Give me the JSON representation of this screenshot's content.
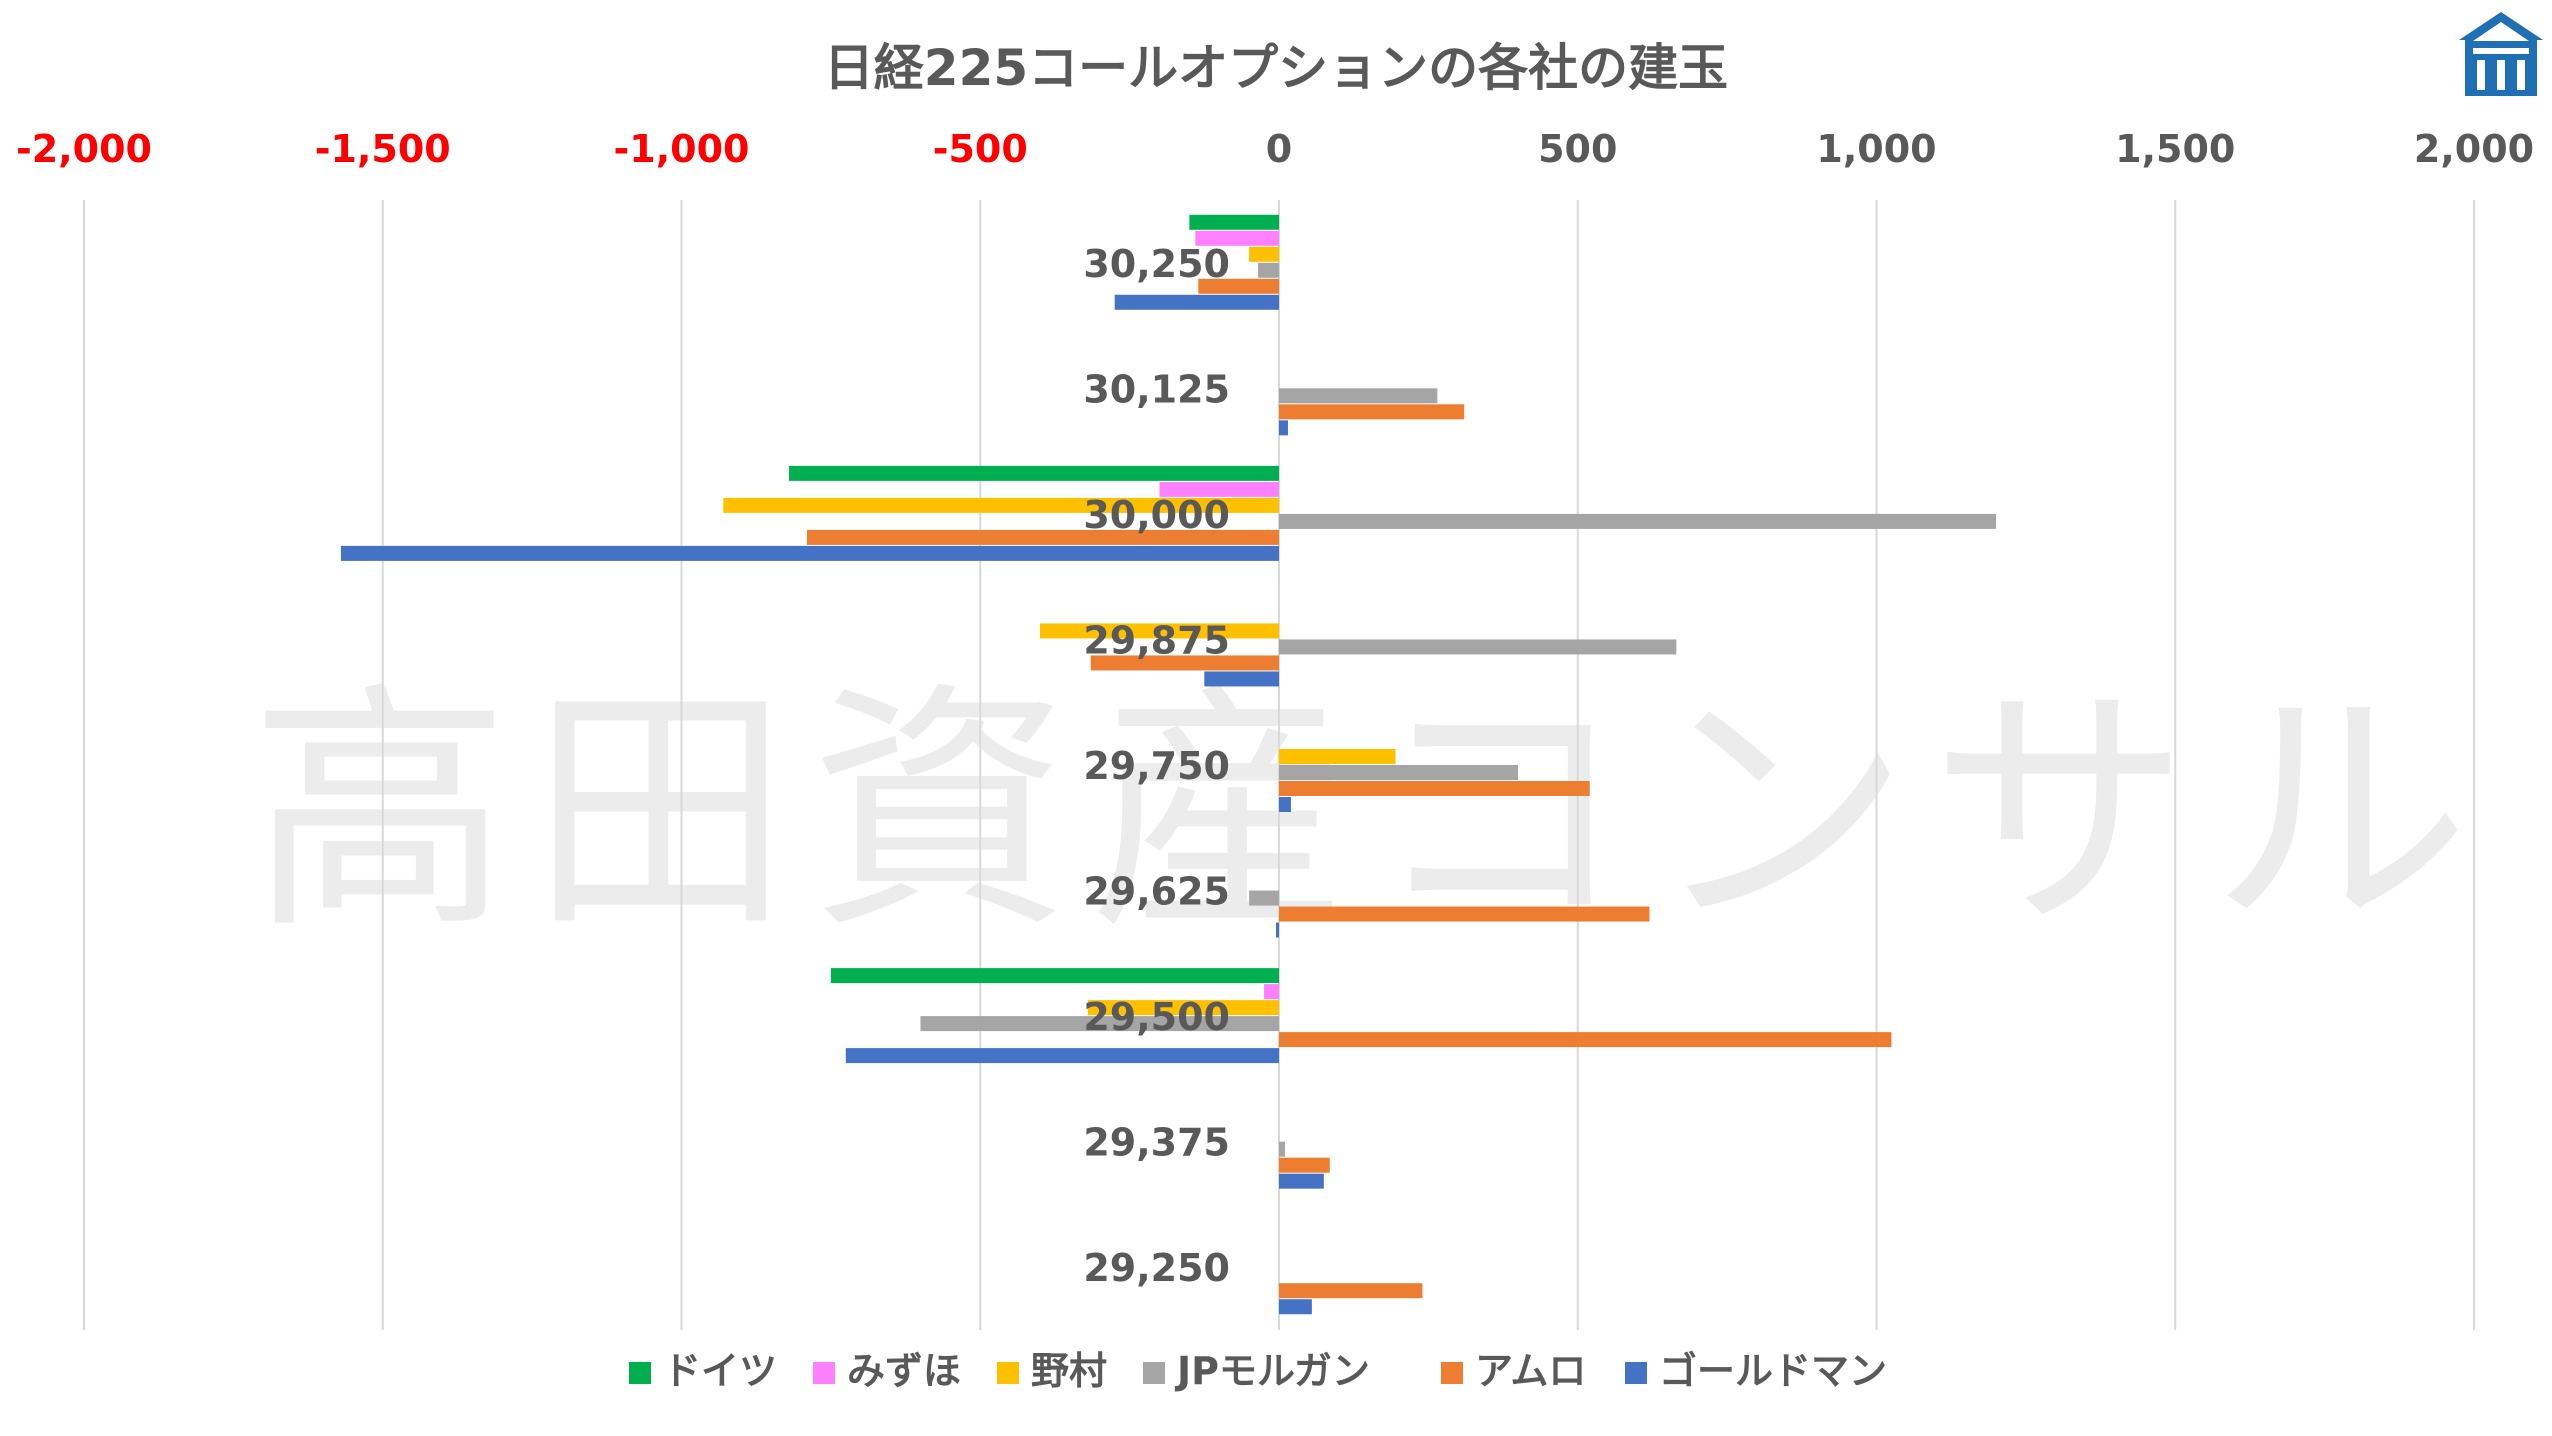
{
  "chart_data": {
    "type": "bar",
    "orientation": "horizontal",
    "title": "日経225コールオプションの各社の建玉",
    "categories": [
      "30,250",
      "30,125",
      "30,000",
      "29,875",
      "29,750",
      "29,625",
      "29,500",
      "29,375",
      "29,250"
    ],
    "xlim": [
      -2000,
      2000
    ],
    "xticks": [
      -2000,
      -1500,
      -1000,
      -500,
      0,
      500,
      1000,
      1500,
      2000
    ],
    "xtick_labels": [
      "-2,000",
      "-1,500",
      "-1,000",
      "-500",
      "0",
      "500",
      "1,000",
      "1,500",
      "2,000"
    ],
    "negative_tick_color": "#ff0000",
    "positive_tick_color": "#595959",
    "grid": "vertical",
    "legend": "bottom",
    "series": [
      {
        "name": "ドイツ",
        "color": "#00b050",
        "values": [
          -150,
          0,
          -820,
          0,
          0,
          0,
          -750,
          0,
          0
        ]
      },
      {
        "name": "みずほ",
        "color": "#ff80ff",
        "values": [
          -140,
          0,
          -200,
          0,
          0,
          0,
          -25,
          0,
          0
        ]
      },
      {
        "name": "野村",
        "color": "#ffc000",
        "values": [
          -50,
          0,
          -930,
          -400,
          195,
          0,
          -320,
          0,
          0
        ]
      },
      {
        "name": "JPモルガン",
        "color": "#a5a5a5",
        "values": [
          -35,
          265,
          1200,
          665,
          400,
          -50,
          -600,
          10,
          0
        ]
      },
      {
        "name": "アムロ",
        "color": "#ed7d31",
        "values": [
          -135,
          310,
          -790,
          -315,
          520,
          620,
          1025,
          85,
          240
        ]
      },
      {
        "name": "ゴールドマン",
        "color": "#4472c4",
        "values": [
          -275,
          15,
          -1570,
          -125,
          20,
          -5,
          -725,
          75,
          55
        ]
      }
    ]
  },
  "watermark_text": "高田資産コンサル"
}
